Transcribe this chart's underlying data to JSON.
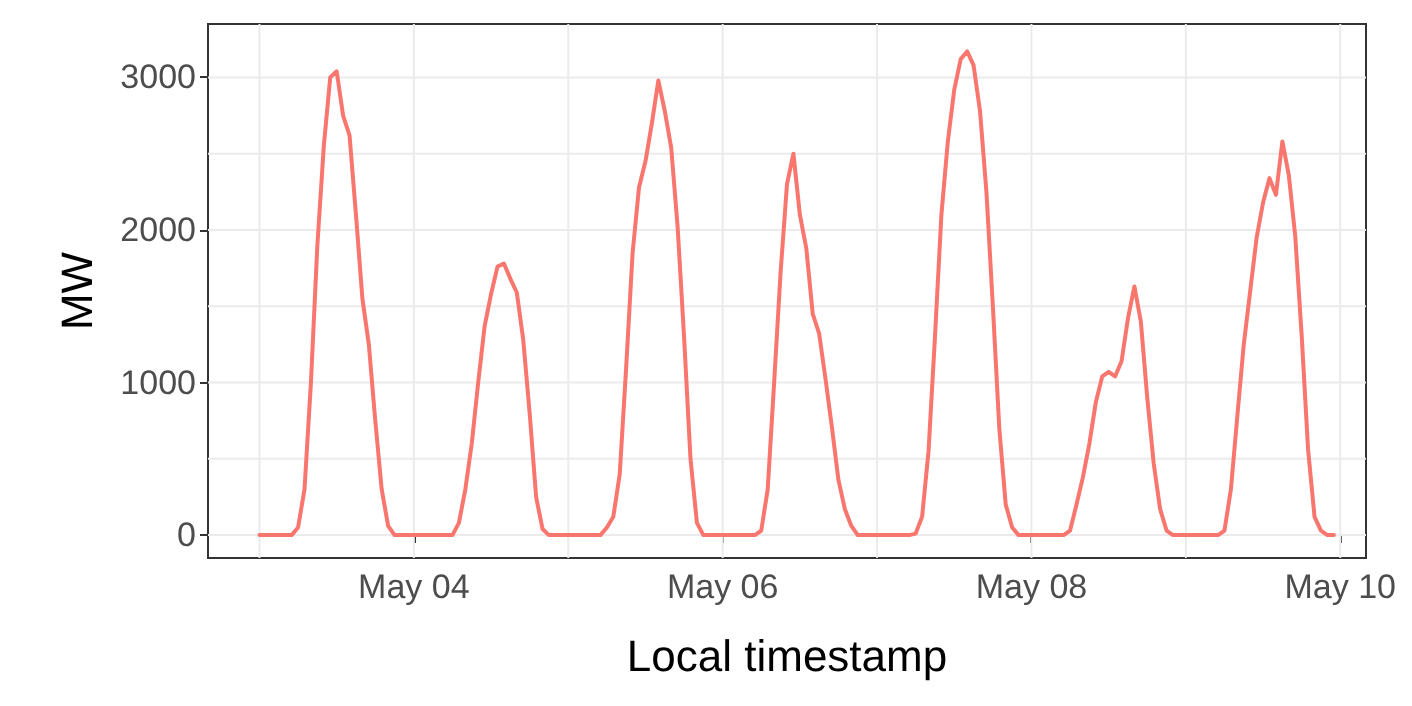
{
  "chart_data": {
    "type": "line",
    "xlabel": "Local timestamp",
    "ylabel": "MW",
    "grid": true,
    "marker": "none",
    "line_style": "solid",
    "xlim": [
      "--05-02T16:00",
      "--05-10T04:00"
    ],
    "xticks": [
      {
        "value": "--05-03",
        "label": null
      },
      {
        "value": "--05-04",
        "label": "May 04"
      },
      {
        "value": "--05-05",
        "label": null
      },
      {
        "value": "--05-06",
        "label": "May 06"
      },
      {
        "value": "--05-07",
        "label": null
      },
      {
        "value": "--05-08",
        "label": "May 08"
      },
      {
        "value": "--05-09",
        "label": null
      },
      {
        "value": "--05-10",
        "label": "May 10"
      }
    ],
    "ylim": [
      -150,
      3350
    ],
    "yticks": [
      0,
      {
        "value": 500,
        "label": null
      },
      1000,
      {
        "value": 1500,
        "label": null
      },
      2000,
      {
        "value": 2500,
        "label": null
      },
      3000
    ],
    "x": [
      "--05-03T00:00",
      "--05-03T01:00",
      "--05-03T02:00",
      "--05-03T03:00",
      "--05-03T04:00",
      "--05-03T05:00",
      "--05-03T06:00",
      "--05-03T07:00",
      "--05-03T08:00",
      "--05-03T09:00",
      "--05-03T10:00",
      "--05-03T11:00",
      "--05-03T12:00",
      "--05-03T13:00",
      "--05-03T14:00",
      "--05-03T15:00",
      "--05-03T16:00",
      "--05-03T17:00",
      "--05-03T18:00",
      "--05-03T19:00",
      "--05-03T20:00",
      "--05-03T21:00",
      "--05-03T22:00",
      "--05-03T23:00",
      "--05-04T00:00",
      "--05-04T01:00",
      "--05-04T02:00",
      "--05-04T03:00",
      "--05-04T04:00",
      "--05-04T05:00",
      "--05-04T06:00",
      "--05-04T07:00",
      "--05-04T08:00",
      "--05-04T09:00",
      "--05-04T10:00",
      "--05-04T11:00",
      "--05-04T12:00",
      "--05-04T13:00",
      "--05-04T14:00",
      "--05-04T15:00",
      "--05-04T16:00",
      "--05-04T17:00",
      "--05-04T18:00",
      "--05-04T19:00",
      "--05-04T20:00",
      "--05-04T21:00",
      "--05-04T22:00",
      "--05-04T23:00",
      "--05-05T00:00",
      "--05-05T01:00",
      "--05-05T02:00",
      "--05-05T03:00",
      "--05-05T04:00",
      "--05-05T05:00",
      "--05-05T06:00",
      "--05-05T07:00",
      "--05-05T08:00",
      "--05-05T09:00",
      "--05-05T10:00",
      "--05-05T11:00",
      "--05-05T12:00",
      "--05-05T13:00",
      "--05-05T14:00",
      "--05-05T15:00",
      "--05-05T16:00",
      "--05-05T17:00",
      "--05-05T18:00",
      "--05-05T19:00",
      "--05-05T20:00",
      "--05-05T21:00",
      "--05-05T22:00",
      "--05-05T23:00",
      "--05-06T00:00",
      "--05-06T01:00",
      "--05-06T02:00",
      "--05-06T03:00",
      "--05-06T04:00",
      "--05-06T05:00",
      "--05-06T06:00",
      "--05-06T07:00",
      "--05-06T08:00",
      "--05-06T09:00",
      "--05-06T10:00",
      "--05-06T11:00",
      "--05-06T12:00",
      "--05-06T13:00",
      "--05-06T14:00",
      "--05-06T15:00",
      "--05-06T16:00",
      "--05-06T17:00",
      "--05-06T18:00",
      "--05-06T19:00",
      "--05-06T20:00",
      "--05-06T21:00",
      "--05-06T22:00",
      "--05-06T23:00",
      "--05-07T00:00",
      "--05-07T01:00",
      "--05-07T02:00",
      "--05-07T03:00",
      "--05-07T04:00",
      "--05-07T05:00",
      "--05-07T06:00",
      "--05-07T07:00",
      "--05-07T08:00",
      "--05-07T09:00",
      "--05-07T10:00",
      "--05-07T11:00",
      "--05-07T12:00",
      "--05-07T13:00",
      "--05-07T14:00",
      "--05-07T15:00",
      "--05-07T16:00",
      "--05-07T17:00",
      "--05-07T18:00",
      "--05-07T19:00",
      "--05-07T20:00",
      "--05-07T21:00",
      "--05-07T22:00",
      "--05-07T23:00",
      "--05-08T00:00",
      "--05-08T01:00",
      "--05-08T02:00",
      "--05-08T03:00",
      "--05-08T04:00",
      "--05-08T05:00",
      "--05-08T06:00",
      "--05-08T07:00",
      "--05-08T08:00",
      "--05-08T09:00",
      "--05-08T10:00",
      "--05-08T11:00",
      "--05-08T12:00",
      "--05-08T13:00",
      "--05-08T14:00",
      "--05-08T15:00",
      "--05-08T16:00",
      "--05-08T17:00",
      "--05-08T18:00",
      "--05-08T19:00",
      "--05-08T20:00",
      "--05-08T21:00",
      "--05-08T22:00",
      "--05-08T23:00",
      "--05-09T00:00",
      "--05-09T01:00",
      "--05-09T02:00",
      "--05-09T03:00",
      "--05-09T04:00",
      "--05-09T05:00",
      "--05-09T06:00",
      "--05-09T07:00",
      "--05-09T08:00",
      "--05-09T09:00",
      "--05-09T10:00",
      "--05-09T11:00",
      "--05-09T12:00",
      "--05-09T13:00",
      "--05-09T14:00",
      "--05-09T15:00",
      "--05-09T16:00",
      "--05-09T17:00",
      "--05-09T18:00",
      "--05-09T19:00",
      "--05-09T20:00",
      "--05-09T21:00",
      "--05-09T22:00",
      "--05-09T23:00"
    ],
    "series": [
      {
        "color": "#f8766d",
        "values": [
          0,
          0,
          0,
          0,
          0,
          0,
          50,
          300,
          1000,
          1900,
          2550,
          3000,
          3040,
          2750,
          2620,
          2100,
          1550,
          1250,
          750,
          300,
          60,
          0,
          0,
          0,
          0,
          0,
          0,
          0,
          0,
          0,
          0,
          80,
          300,
          600,
          1000,
          1370,
          1580,
          1760,
          1780,
          1680,
          1590,
          1280,
          800,
          250,
          40,
          0,
          0,
          0,
          0,
          0,
          0,
          0,
          0,
          0,
          50,
          120,
          400,
          1100,
          1850,
          2280,
          2450,
          2700,
          2980,
          2780,
          2540,
          2020,
          1300,
          500,
          80,
          0,
          0,
          0,
          0,
          0,
          0,
          0,
          0,
          0,
          30,
          300,
          1000,
          1720,
          2300,
          2500,
          2100,
          1880,
          1450,
          1320,
          1020,
          700,
          360,
          170,
          60,
          0,
          0,
          0,
          0,
          0,
          0,
          0,
          0,
          0,
          10,
          120,
          550,
          1300,
          2100,
          2580,
          2920,
          3120,
          3170,
          3080,
          2780,
          2250,
          1500,
          700,
          200,
          50,
          0,
          0,
          0,
          0,
          0,
          0,
          0,
          0,
          30,
          200,
          380,
          600,
          870,
          1040,
          1070,
          1040,
          1140,
          1420,
          1630,
          1400,
          900,
          470,
          170,
          30,
          0,
          0,
          0,
          0,
          0,
          0,
          0,
          0,
          30,
          300,
          780,
          1250,
          1600,
          1950,
          2180,
          2340,
          2230,
          2580,
          2360,
          1960,
          1310,
          560,
          120,
          30,
          0,
          0
        ]
      }
    ]
  }
}
